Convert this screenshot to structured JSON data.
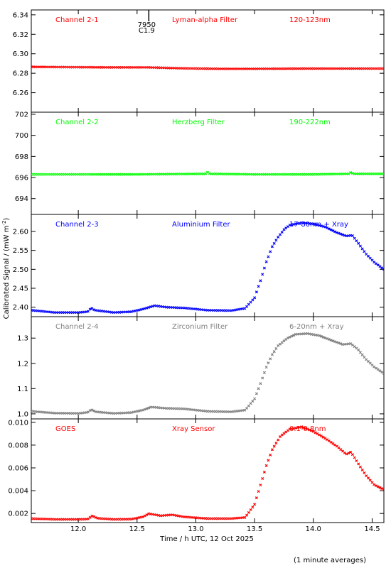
{
  "chart_data": {
    "type": "scatter",
    "xlabel": "Time / h UTC, 12 Oct 2025",
    "ylabel": "Calibrated Signal / (mW m",
    "ylabel_sup": "-2",
    "ylabel_close": ")",
    "footnote": "(1 minute averages)",
    "xlim": [
      11.6,
      14.6
    ],
    "xticks": [
      12.0,
      12.5,
      13.0,
      13.5,
      14.0,
      14.5
    ],
    "xtick_labels": [
      "12.0",
      "12.5",
      "13.0",
      "13.5",
      "14.0",
      "14.5"
    ],
    "event_marker": {
      "x": 12.6,
      "labels": [
        "7950",
        "C1.9"
      ]
    },
    "panels": [
      {
        "channel": "Channel 2-1",
        "filter": "Lyman-alpha Filter",
        "band": "120-123nm",
        "color": "#ff0000",
        "label_color": "#ff0000",
        "ylim": [
          6.24,
          6.345
        ],
        "yticks": [
          6.26,
          6.28,
          6.3,
          6.32,
          6.34
        ],
        "ytick_labels": [
          "6.26",
          "6.28",
          "6.30",
          "6.32",
          "6.34"
        ],
        "points": [
          [
            11.6,
            6.2865
          ],
          [
            12.0,
            6.2862
          ],
          [
            12.3,
            6.286
          ],
          [
            12.6,
            6.286
          ],
          [
            12.9,
            6.285
          ],
          [
            13.2,
            6.2845
          ],
          [
            13.5,
            6.2845
          ],
          [
            14.0,
            6.2848
          ],
          [
            14.3,
            6.2848
          ],
          [
            14.6,
            6.2848
          ]
        ]
      },
      {
        "channel": "Channel 2-2",
        "filter": "Herzberg Filter",
        "band": "190-222nm",
        "color": "#00ff00",
        "label_color": "#00ff00",
        "ylim": [
          692.5,
          702.2
        ],
        "yticks": [
          694,
          696,
          698,
          700,
          702
        ],
        "ytick_labels": [
          "694",
          "696",
          "698",
          "700",
          "702"
        ],
        "points": [
          [
            11.6,
            696.3
          ],
          [
            12.0,
            696.3
          ],
          [
            12.5,
            696.3
          ],
          [
            13.08,
            696.35
          ],
          [
            13.1,
            696.5
          ],
          [
            13.12,
            696.35
          ],
          [
            13.5,
            696.3
          ],
          [
            14.0,
            696.3
          ],
          [
            14.3,
            696.35
          ],
          [
            14.32,
            696.5
          ],
          [
            14.34,
            696.35
          ],
          [
            14.6,
            696.35
          ]
        ]
      },
      {
        "channel": "Channel 2-3",
        "filter": "Aluminium Filter",
        "band": "17-80nm + Xray",
        "color": "#0000ff",
        "label_color": "#0000ff",
        "ylim": [
          2.375,
          2.645
        ],
        "yticks": [
          2.4,
          2.45,
          2.5,
          2.55,
          2.6
        ],
        "ytick_labels": [
          "2.40",
          "2.45",
          "2.50",
          "2.55",
          "2.60"
        ],
        "points": [
          [
            11.6,
            2.392
          ],
          [
            11.8,
            2.386
          ],
          [
            12.0,
            2.386
          ],
          [
            12.08,
            2.388
          ],
          [
            12.11,
            2.398
          ],
          [
            12.14,
            2.392
          ],
          [
            12.3,
            2.386
          ],
          [
            12.45,
            2.388
          ],
          [
            12.55,
            2.395
          ],
          [
            12.65,
            2.404
          ],
          [
            12.75,
            2.4
          ],
          [
            12.9,
            2.398
          ],
          [
            13.1,
            2.392
          ],
          [
            13.3,
            2.391
          ],
          [
            13.42,
            2.397
          ],
          [
            13.5,
            2.425
          ],
          [
            13.55,
            2.47
          ],
          [
            13.6,
            2.52
          ],
          [
            13.65,
            2.56
          ],
          [
            13.7,
            2.585
          ],
          [
            13.75,
            2.605
          ],
          [
            13.8,
            2.617
          ],
          [
            13.9,
            2.623
          ],
          [
            14.0,
            2.62
          ],
          [
            14.1,
            2.612
          ],
          [
            14.2,
            2.597
          ],
          [
            14.28,
            2.588
          ],
          [
            14.33,
            2.59
          ],
          [
            14.38,
            2.57
          ],
          [
            14.45,
            2.54
          ],
          [
            14.52,
            2.518
          ],
          [
            14.6,
            2.5
          ]
        ]
      },
      {
        "channel": "Channel 2-4",
        "filter": "Zirconium Filter",
        "band": "6-20nm + Xray",
        "color": "#808080",
        "label_color": "#808080",
        "ylim": [
          0.98,
          1.385
        ],
        "yticks": [
          1.0,
          1.1,
          1.2,
          1.3
        ],
        "ytick_labels": [
          "1.0",
          "1.1",
          "1.2",
          "1.3"
        ],
        "points": [
          [
            11.6,
            1.01
          ],
          [
            11.8,
            1.003
          ],
          [
            12.0,
            1.002
          ],
          [
            12.08,
            1.006
          ],
          [
            12.11,
            1.017
          ],
          [
            12.15,
            1.008
          ],
          [
            12.3,
            1.002
          ],
          [
            12.45,
            1.005
          ],
          [
            12.55,
            1.015
          ],
          [
            12.62,
            1.027
          ],
          [
            12.75,
            1.022
          ],
          [
            12.9,
            1.02
          ],
          [
            13.1,
            1.01
          ],
          [
            13.3,
            1.008
          ],
          [
            13.42,
            1.015
          ],
          [
            13.5,
            1.06
          ],
          [
            13.55,
            1.12
          ],
          [
            13.6,
            1.185
          ],
          [
            13.65,
            1.235
          ],
          [
            13.7,
            1.27
          ],
          [
            13.78,
            1.3
          ],
          [
            13.85,
            1.315
          ],
          [
            13.95,
            1.318
          ],
          [
            14.05,
            1.31
          ],
          [
            14.15,
            1.292
          ],
          [
            14.25,
            1.275
          ],
          [
            14.32,
            1.278
          ],
          [
            14.38,
            1.255
          ],
          [
            14.45,
            1.215
          ],
          [
            14.52,
            1.185
          ],
          [
            14.6,
            1.16
          ]
        ]
      },
      {
        "channel": "GOES",
        "filter": "Xray Sensor",
        "band": "0.1-0.8nm",
        "color": "#ff0000",
        "label_color": "#ff0000",
        "ylim": [
          0.0012,
          0.0103
        ],
        "yticks": [
          0.002,
          0.004,
          0.006,
          0.008,
          0.01
        ],
        "ytick_labels": [
          "0.002",
          "0.004",
          "0.006",
          "0.008",
          "0.010"
        ],
        "points": [
          [
            11.6,
            0.00155
          ],
          [
            11.8,
            0.00148
          ],
          [
            12.0,
            0.00148
          ],
          [
            12.08,
            0.0015
          ],
          [
            12.12,
            0.0018
          ],
          [
            12.16,
            0.00158
          ],
          [
            12.3,
            0.00148
          ],
          [
            12.45,
            0.0015
          ],
          [
            12.55,
            0.0017
          ],
          [
            12.6,
            0.00198
          ],
          [
            12.7,
            0.0018
          ],
          [
            12.8,
            0.00188
          ],
          [
            12.9,
            0.0017
          ],
          [
            13.1,
            0.00155
          ],
          [
            13.3,
            0.00155
          ],
          [
            13.42,
            0.00165
          ],
          [
            13.5,
            0.0028
          ],
          [
            13.55,
            0.0045
          ],
          [
            13.6,
            0.0062
          ],
          [
            13.65,
            0.0076
          ],
          [
            13.72,
            0.0088
          ],
          [
            13.8,
            0.0094
          ],
          [
            13.9,
            0.0096
          ],
          [
            14.0,
            0.0092
          ],
          [
            14.1,
            0.0086
          ],
          [
            14.2,
            0.0079
          ],
          [
            14.28,
            0.0072
          ],
          [
            14.32,
            0.0074
          ],
          [
            14.38,
            0.0064
          ],
          [
            14.45,
            0.0053
          ],
          [
            14.52,
            0.0045
          ],
          [
            14.6,
            0.0041
          ]
        ]
      }
    ]
  }
}
